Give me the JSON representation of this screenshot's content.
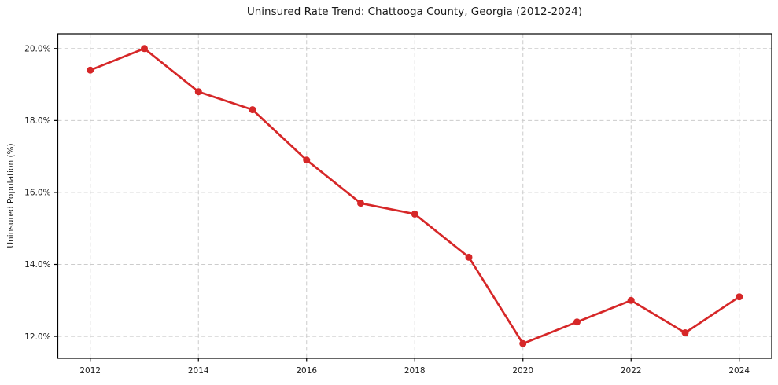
{
  "chart_data": {
    "type": "line",
    "title": "Uninsured Rate Trend: Chattooga County, Georgia (2012-2024)",
    "xlabel": "",
    "ylabel": "Uninsured Population (%)",
    "x": [
      2012,
      2013,
      2014,
      2015,
      2016,
      2017,
      2018,
      2019,
      2020,
      2021,
      2022,
      2023,
      2024
    ],
    "values": [
      19.4,
      20.0,
      18.8,
      18.3,
      16.9,
      15.7,
      15.4,
      14.2,
      11.8,
      12.4,
      13.0,
      12.1,
      13.1
    ],
    "xlim": [
      2011.4,
      2024.6
    ],
    "ylim": [
      11.39,
      20.41
    ],
    "xticks": [
      2012,
      2014,
      2016,
      2018,
      2020,
      2022,
      2024
    ],
    "xtick_labels": [
      "2012",
      "2014",
      "2016",
      "2018",
      "2020",
      "2022",
      "2024"
    ],
    "yticks": [
      12,
      14,
      16,
      18,
      20
    ],
    "ytick_labels": [
      "12.0%",
      "14.0%",
      "16.0%",
      "18.0%",
      "20.0%"
    ],
    "grid": true,
    "legend": "none",
    "line_color": "#d62728",
    "marker_color": "#d62728",
    "grid_color": "#cccccc",
    "spine_color": "#000000",
    "text_color": "#1a1a1a",
    "background": "#ffffff"
  }
}
